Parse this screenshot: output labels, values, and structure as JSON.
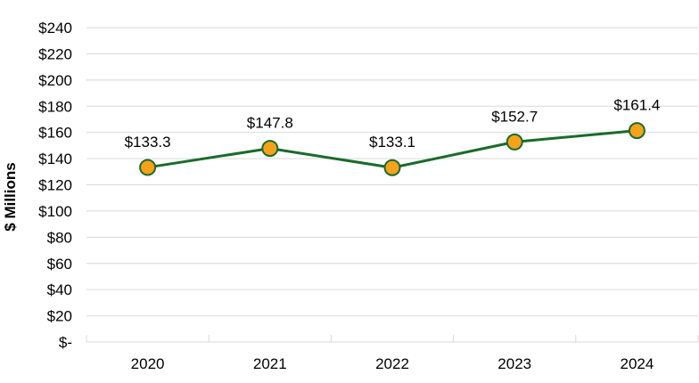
{
  "chart_data": {
    "type": "line",
    "categories": [
      "2020",
      "2021",
      "2022",
      "2023",
      "2024"
    ],
    "series": [
      {
        "values": [
          133.3,
          147.8,
          133.1,
          152.7,
          161.4
        ],
        "data_labels": [
          "$133.3",
          "$147.8",
          "$133.1",
          "$152.7",
          "$161.4"
        ],
        "line_color": "#1a6b2a",
        "marker_fill": "#f5a11c",
        "marker_stroke": "#1a6b2a"
      }
    ],
    "ylabel": "$ Millions",
    "ylim": [
      0,
      240
    ],
    "yticks": [
      0,
      20,
      40,
      60,
      80,
      100,
      120,
      140,
      160,
      180,
      200,
      220,
      240
    ],
    "ytick_labels": [
      "$-",
      "$20",
      "$40",
      "$60",
      "$80",
      "$100",
      "$120",
      "$140",
      "$160",
      "$180",
      "$200",
      "$220",
      "$240"
    ],
    "gridline_color": "#d9d9d9",
    "grid": true,
    "legend": "none"
  }
}
